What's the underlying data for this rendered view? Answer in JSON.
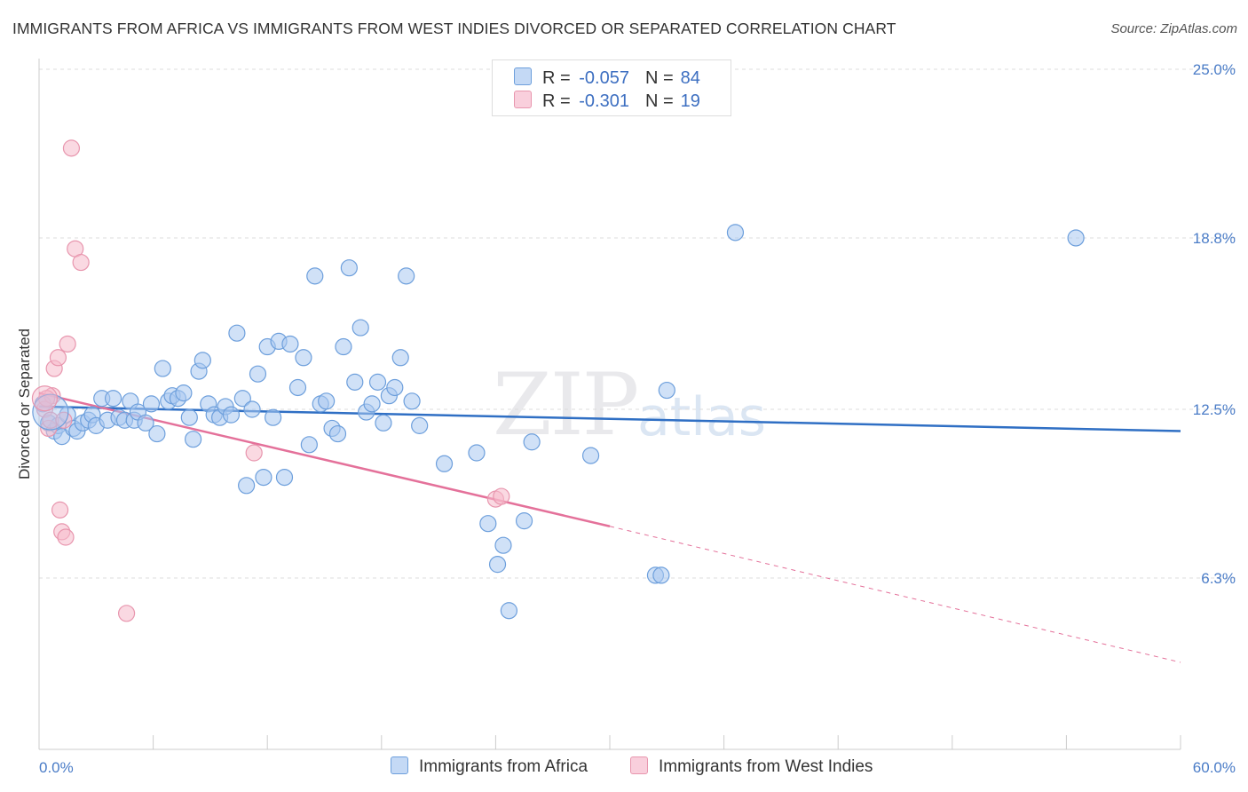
{
  "title": "IMMIGRANTS FROM AFRICA VS IMMIGRANTS FROM WEST INDIES DIVORCED OR SEPARATED CORRELATION CHART",
  "source": "Source: ZipAtlas.com",
  "watermark": {
    "zip": "ZIP",
    "atlas": "atlas"
  },
  "legend": {
    "rows": [
      {
        "r_label": "R =",
        "r_value": "-0.057",
        "n_label": "N =",
        "n_value": "84",
        "color": "#a9c8f0"
      },
      {
        "r_label": "R =",
        "r_value": "-0.301",
        "n_label": "N =",
        "n_value": "19",
        "color": "#f5b9cb"
      }
    ]
  },
  "chart_data": {
    "type": "scatter",
    "xlabel": "",
    "ylabel": "Divorced or Separated",
    "xlim": [
      0,
      60
    ],
    "ylim": [
      0,
      25
    ],
    "x_tick_labels": [
      "0.0%",
      "60.0%"
    ],
    "y_ticks": [
      6.3,
      12.5,
      18.8,
      25.0
    ],
    "y_tick_labels": [
      "6.3%",
      "12.5%",
      "18.8%",
      "25.0%"
    ],
    "grid": "horizontal dashed",
    "legend_position": "bottom",
    "series": [
      {
        "name": "Immigrants from Africa",
        "color": "#a9c8f0",
        "stroke": "#6d9fdc",
        "trend_color": "#2f6fc4",
        "trend": {
          "x": [
            0,
            60
          ],
          "y": [
            12.6,
            11.7
          ]
        },
        "points": [
          [
            0.2,
            12.7
          ],
          [
            0.5,
            12.0
          ],
          [
            0.8,
            11.7
          ],
          [
            1.0,
            11.9
          ],
          [
            1.2,
            11.5
          ],
          [
            1.5,
            12.3
          ],
          [
            1.8,
            11.8
          ],
          [
            2.0,
            11.7
          ],
          [
            2.3,
            12.0
          ],
          [
            2.6,
            12.1
          ],
          [
            2.8,
            12.3
          ],
          [
            3.0,
            11.9
          ],
          [
            3.3,
            12.9
          ],
          [
            3.6,
            12.1
          ],
          [
            3.9,
            12.9
          ],
          [
            4.2,
            12.2
          ],
          [
            4.5,
            12.1
          ],
          [
            4.8,
            12.8
          ],
          [
            5.0,
            12.1
          ],
          [
            5.2,
            12.4
          ],
          [
            5.6,
            12.0
          ],
          [
            5.9,
            12.7
          ],
          [
            6.2,
            11.6
          ],
          [
            6.5,
            14.0
          ],
          [
            6.8,
            12.8
          ],
          [
            7.0,
            13.0
          ],
          [
            7.3,
            12.9
          ],
          [
            7.6,
            13.1
          ],
          [
            7.9,
            12.2
          ],
          [
            8.1,
            11.4
          ],
          [
            8.4,
            13.9
          ],
          [
            8.6,
            14.3
          ],
          [
            8.9,
            12.7
          ],
          [
            9.2,
            12.3
          ],
          [
            9.5,
            12.2
          ],
          [
            9.8,
            12.6
          ],
          [
            10.1,
            12.3
          ],
          [
            10.4,
            15.3
          ],
          [
            10.7,
            12.9
          ],
          [
            10.9,
            9.7
          ],
          [
            11.2,
            12.5
          ],
          [
            11.5,
            13.8
          ],
          [
            11.8,
            10.0
          ],
          [
            12.0,
            14.8
          ],
          [
            12.3,
            12.2
          ],
          [
            12.6,
            15.0
          ],
          [
            12.9,
            10.0
          ],
          [
            13.2,
            14.9
          ],
          [
            13.6,
            13.3
          ],
          [
            13.9,
            14.4
          ],
          [
            14.2,
            11.2
          ],
          [
            14.5,
            17.4
          ],
          [
            14.8,
            12.7
          ],
          [
            15.1,
            12.8
          ],
          [
            15.4,
            11.8
          ],
          [
            15.7,
            11.6
          ],
          [
            16.0,
            14.8
          ],
          [
            16.3,
            17.7
          ],
          [
            16.6,
            13.5
          ],
          [
            16.9,
            15.5
          ],
          [
            17.2,
            12.4
          ],
          [
            17.5,
            12.7
          ],
          [
            17.8,
            13.5
          ],
          [
            18.1,
            12.0
          ],
          [
            18.4,
            13.0
          ],
          [
            18.7,
            13.3
          ],
          [
            19.0,
            14.4
          ],
          [
            19.3,
            17.4
          ],
          [
            19.6,
            12.8
          ],
          [
            20.0,
            11.9
          ],
          [
            21.3,
            10.5
          ],
          [
            23.0,
            10.9
          ],
          [
            23.6,
            8.3
          ],
          [
            24.1,
            6.8
          ],
          [
            24.4,
            7.5
          ],
          [
            24.7,
            5.1
          ],
          [
            25.5,
            8.4
          ],
          [
            25.9,
            11.3
          ],
          [
            29.0,
            10.8
          ],
          [
            32.4,
            6.4
          ],
          [
            32.7,
            6.4
          ],
          [
            33.0,
            13.2
          ],
          [
            36.6,
            19.0
          ],
          [
            54.5,
            18.8
          ]
        ]
      },
      {
        "name": "Immigrants from West Indies",
        "color": "#f5b9cb",
        "stroke": "#e896ae",
        "trend_color": "#e4719a",
        "trend": {
          "x": [
            0,
            30
          ],
          "y": [
            13.1,
            8.2
          ]
        },
        "trend_dashed_to": {
          "x": 60,
          "y": 3.2
        },
        "points": [
          [
            0.3,
            12.5
          ],
          [
            0.5,
            11.8
          ],
          [
            0.7,
            13.0
          ],
          [
            0.8,
            14.0
          ],
          [
            1.0,
            14.4
          ],
          [
            1.1,
            8.8
          ],
          [
            1.2,
            8.0
          ],
          [
            1.4,
            7.8
          ],
          [
            1.5,
            14.9
          ],
          [
            1.7,
            22.1
          ],
          [
            1.9,
            18.4
          ],
          [
            2.2,
            17.9
          ],
          [
            0.4,
            12.9
          ],
          [
            0.6,
            12.1
          ],
          [
            4.6,
            5.0
          ],
          [
            11.3,
            10.9
          ],
          [
            24.0,
            9.2
          ],
          [
            24.3,
            9.3
          ],
          [
            1.3,
            12.1
          ]
        ]
      }
    ]
  },
  "bottom_legend": [
    {
      "label": "Immigrants from Africa",
      "color": "#a9c8f0"
    },
    {
      "label": "Immigrants from West Indies",
      "color": "#f5b9cb"
    }
  ]
}
